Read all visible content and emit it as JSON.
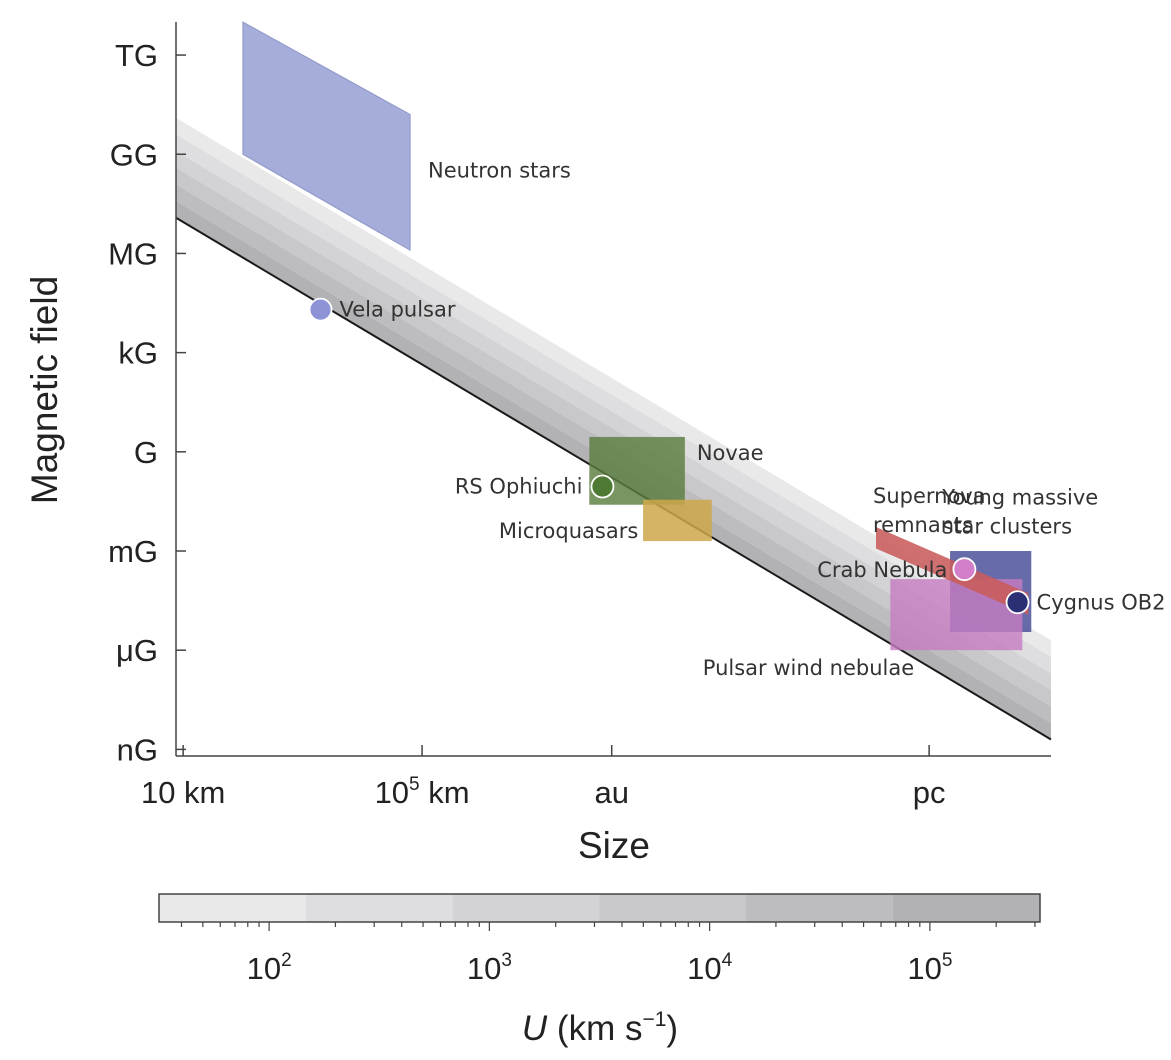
{
  "chart_data": {
    "type": "scatter",
    "title": "",
    "xlabel": "Size",
    "ylabel": "Magnetic field",
    "x_scale": "log",
    "y_scale": "log",
    "x_ticks": [
      {
        "label": "10 km",
        "value_km": 10
      },
      {
        "label_base": "10",
        "label_exp": "5",
        "label_unit": " km",
        "value_km": 100000
      },
      {
        "label": "au",
        "value_km": 149597871
      },
      {
        "label": "pc",
        "value_km": 30856775814914
      }
    ],
    "y_ticks": [
      {
        "label": "TG",
        "value_gauss": 1000000000000.0
      },
      {
        "label": "GG",
        "value_gauss": 1000000000.0
      },
      {
        "label": "MG",
        "value_gauss": 1000000.0
      },
      {
        "label": "kG",
        "value_gauss": 1000.0
      },
      {
        "label": "G",
        "value_gauss": 1
      },
      {
        "label": "mG",
        "value_gauss": 0.001
      },
      {
        "label": "μG",
        "value_gauss": 1e-06
      },
      {
        "label": "nG",
        "value_gauss": 1e-09
      }
    ],
    "xlim_log10_km": [
      0.88,
      15.53
    ],
    "ylim_log10_gauss": [
      -9.2,
      13
    ],
    "hillas_limit": {
      "description_color": "#1a1a1a",
      "line": [
        [
          0.88,
          7.08
        ],
        [
          15.53,
          -8.7
        ]
      ],
      "band_upper": [
        [
          0.88,
          10.1
        ],
        [
          15.53,
          -5.7
        ]
      ],
      "band_steps": 6,
      "band_colors": [
        "#e9e9e9",
        "#dedee0",
        "#d3d3d5",
        "#c8c8ca",
        "#bdbdc0",
        "#b2b2b5"
      ]
    },
    "regions": [
      {
        "name": "Neutron stars",
        "type": "parallelogram",
        "color": "#9ea6d8",
        "opacity": 0.92,
        "polygon": [
          [
            2.0,
            13.0
          ],
          [
            4.8,
            10.2
          ],
          [
            4.8,
            6.1
          ],
          [
            2.0,
            9.0
          ]
        ],
        "label": "Neutron stars",
        "label_pos": [
          5.1,
          8.3
        ]
      },
      {
        "name": "Novae",
        "type": "rect",
        "color": "#5b7e3f",
        "opacity": 0.82,
        "x": [
          7.8,
          9.4
        ],
        "y": [
          -1.6,
          0.45
        ],
        "label": "Novae",
        "label_pos": [
          9.6,
          -0.25
        ]
      },
      {
        "name": "Microquasars",
        "type": "rect",
        "color": "#cfa74a",
        "opacity": 0.85,
        "x": [
          8.7,
          9.85
        ],
        "y": [
          -2.7,
          -1.45
        ],
        "label": "Microquasars",
        "label_pos": [
          8.62,
          -2.6
        ]
      },
      {
        "name": "Young massive star clusters",
        "type": "rect",
        "color": "#4d519a",
        "opacity": 0.85,
        "x": [
          13.84,
          15.2
        ],
        "y": [
          -5.45,
          -3.0
        ],
        "label_lines": [
          "Young massive",
          "star clusters"
        ],
        "label_pos": [
          13.71,
          -1.6
        ]
      },
      {
        "name": "Pulsar wind nebulae",
        "type": "rect",
        "color": "#c77cc2",
        "opacity": 0.8,
        "x": [
          12.84,
          15.05
        ],
        "y": [
          -6.0,
          -3.85
        ],
        "label": "Pulsar wind nebulae",
        "label_pos": [
          9.7,
          -6.75
        ]
      },
      {
        "name": "Supernova remnants",
        "type": "band",
        "color": "#c95b5b",
        "opacity": 0.88,
        "path": [
          [
            12.6,
            -2.6
          ],
          [
            15.15,
            -4.6
          ]
        ],
        "width_log10": 0.65,
        "label_lines": [
          "Supernova",
          "remnants"
        ],
        "label_pos": [
          12.55,
          -1.55
        ]
      }
    ],
    "points": [
      {
        "name": "Vela pulsar",
        "x_log10_km": 3.3,
        "y_log10_gauss": 4.3,
        "color": "#8e93d8",
        "label": "Vela pulsar"
      },
      {
        "name": "RS Ophiuchi",
        "x_log10_km": 8.02,
        "y_log10_gauss": -1.05,
        "color": "#4f7a34",
        "label": "RS Ophiuchi"
      },
      {
        "name": "Crab Nebula",
        "x_log10_km": 14.08,
        "y_log10_gauss": -3.55,
        "color": "#d27ec9",
        "label": "Crab Nebula"
      },
      {
        "name": "Cygnus OB2",
        "x_log10_km": 14.97,
        "y_log10_gauss": -4.55,
        "color": "#2b2f73",
        "label": "Cygnus OB2"
      }
    ],
    "colorbar": {
      "title_italic": "U",
      "title_rest": " (km s",
      "title_exp": "−1",
      "title_close": ")",
      "log10_range": [
        1.5,
        5.5
      ],
      "ticks": [
        {
          "base": "10",
          "exp": "2",
          "log10": 2
        },
        {
          "base": "10",
          "exp": "3",
          "log10": 3
        },
        {
          "base": "10",
          "exp": "4",
          "log10": 4
        },
        {
          "base": "10",
          "exp": "5",
          "log10": 5
        }
      ],
      "band_colors": [
        "#e9e9e9",
        "#dedee0",
        "#d3d3d5",
        "#c8c8ca",
        "#bdbdc0",
        "#b2b2b5"
      ]
    }
  }
}
